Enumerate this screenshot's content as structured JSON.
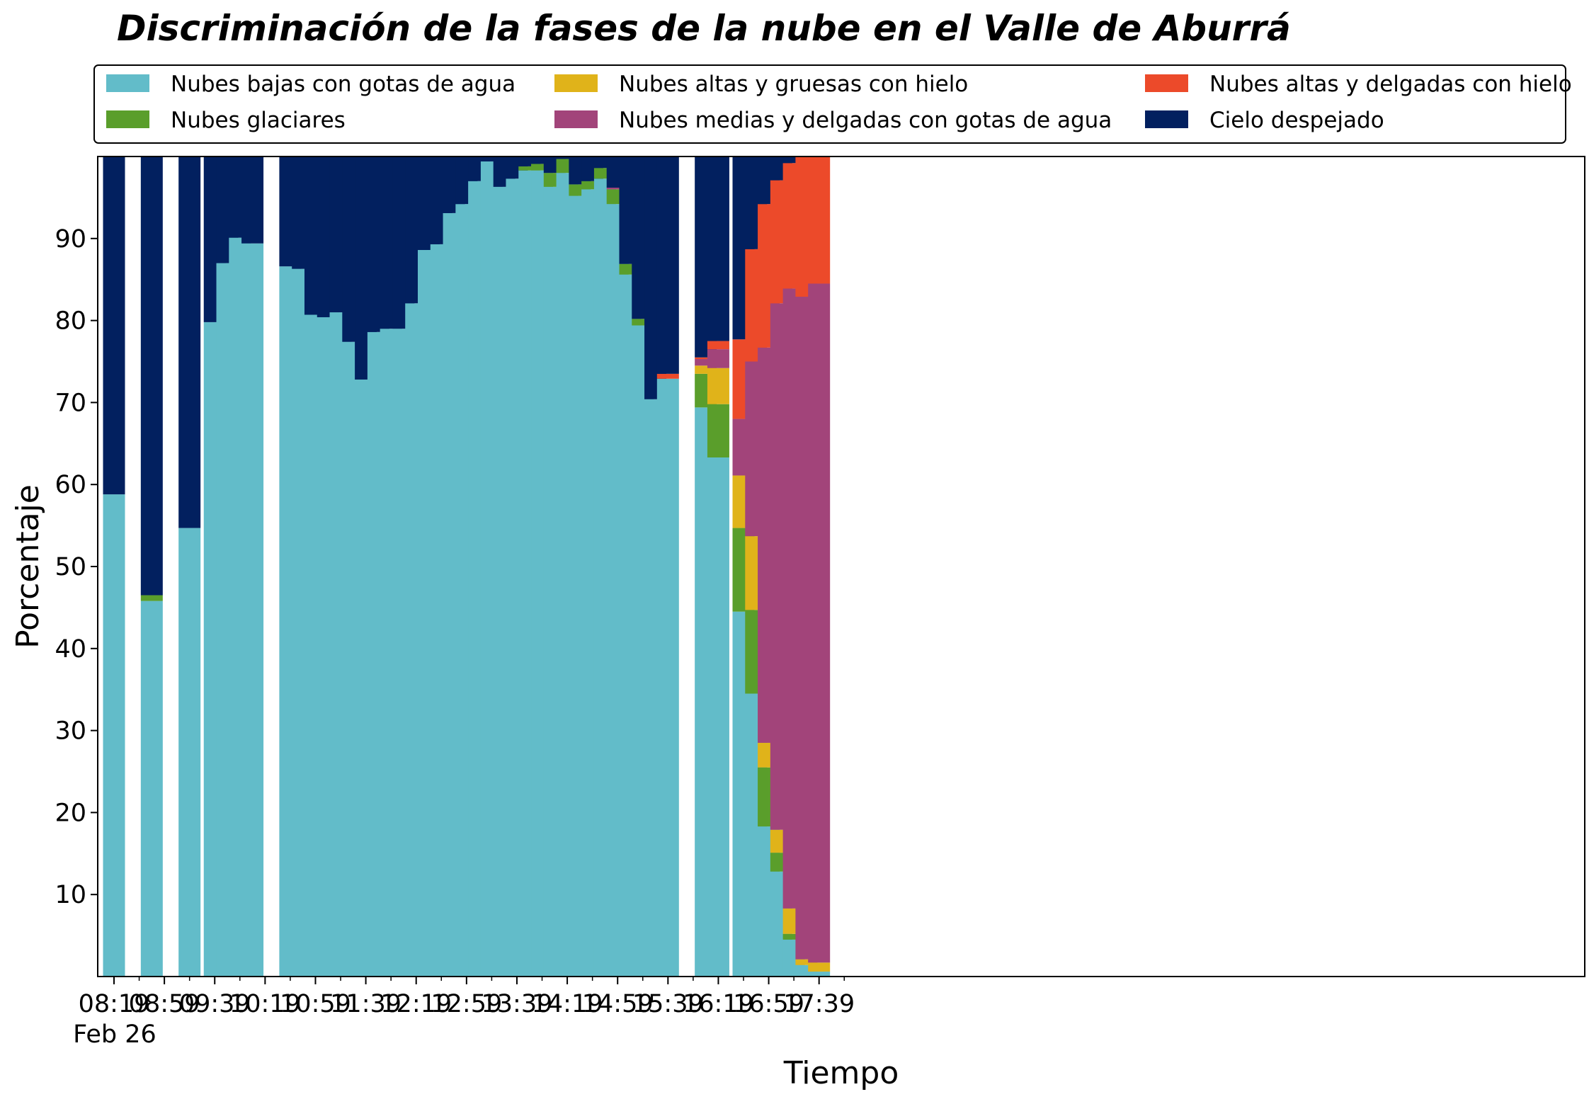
{
  "chart_data": {
    "type": "bar",
    "stacked": true,
    "title": "Discriminación de la fases de la nube en el Valle de Aburrá",
    "xlabel": "Tiempo",
    "ylabel": "Porcentaje",
    "ylim": [
      0,
      100
    ],
    "yticks": [
      10,
      20,
      30,
      40,
      50,
      60,
      70,
      80,
      90
    ],
    "xticks": [
      "08:19",
      "08:59",
      "09:39",
      "10:19",
      "10:59",
      "11:39",
      "12:19",
      "12:59",
      "13:39",
      "14:19",
      "14:59",
      "15:39",
      "16:19",
      "16:59",
      "17:39"
    ],
    "x_sublabel": "Feb 26",
    "legend_placement": "top",
    "grid": false,
    "series_colors": [
      "#62bcc9",
      "#5a9e2b",
      "#e0b31a",
      "#a2447a",
      "#ec4a2a",
      "#02205f"
    ],
    "legend": [
      {
        "label": "Nubes bajas con gotas de agua",
        "color": "#62bcc9"
      },
      {
        "label": "Nubes altas y gruesas con hielo",
        "color": "#e0b31a"
      },
      {
        "label": "Nubes altas y delgadas con hielo",
        "color": "#ec4a2a"
      },
      {
        "label": "Nubes glaciares",
        "color": "#5a9e2b"
      },
      {
        "label": "Nubes medias y delgadas con gotas de agua",
        "color": "#a2447a"
      },
      {
        "label": "Cielo despejado",
        "color": "#02205f"
      }
    ],
    "bars": [
      {
        "time": "08:19",
        "values": [
          58.8,
          0,
          0,
          0,
          0,
          41.2
        ]
      },
      {
        "time": "08:49",
        "values": [
          45.8,
          0.7,
          0,
          0,
          0,
          53.5
        ]
      },
      {
        "time": "09:19",
        "values": [
          54.7,
          0,
          0,
          0,
          0,
          45.3
        ]
      },
      {
        "time": "09:39",
        "values": [
          79.8,
          0,
          0,
          0,
          0,
          20.2
        ]
      },
      {
        "time": "09:49",
        "values": [
          87.0,
          0,
          0,
          0,
          0,
          13.0
        ]
      },
      {
        "time": "09:59",
        "values": [
          90.1,
          0,
          0,
          0,
          0,
          9.9
        ]
      },
      {
        "time": "10:09",
        "values": [
          89.4,
          0,
          0,
          0,
          0,
          10.6
        ]
      },
      {
        "time": "10:39",
        "values": [
          86.6,
          0,
          0,
          0,
          0,
          13.4
        ]
      },
      {
        "time": "10:49",
        "values": [
          86.3,
          0,
          0,
          0,
          0,
          13.7
        ]
      },
      {
        "time": "10:59",
        "values": [
          80.7,
          0,
          0,
          0,
          0,
          19.3
        ]
      },
      {
        "time": "11:09",
        "values": [
          80.4,
          0,
          0,
          0,
          0,
          19.6
        ]
      },
      {
        "time": "11:19",
        "values": [
          81.0,
          0,
          0,
          0,
          0,
          19.0
        ]
      },
      {
        "time": "11:29",
        "values": [
          77.4,
          0,
          0,
          0,
          0,
          22.6
        ]
      },
      {
        "time": "11:39",
        "values": [
          72.8,
          0,
          0,
          0,
          0,
          27.2
        ]
      },
      {
        "time": "11:49",
        "values": [
          78.6,
          0,
          0,
          0,
          0,
          21.4
        ]
      },
      {
        "time": "11:59",
        "values": [
          79.0,
          0,
          0,
          0,
          0,
          21.0
        ]
      },
      {
        "time": "12:09",
        "values": [
          79.0,
          0,
          0,
          0,
          0,
          21.0
        ]
      },
      {
        "time": "12:19",
        "values": [
          82.1,
          0,
          0,
          0,
          0,
          17.9
        ]
      },
      {
        "time": "12:29",
        "values": [
          88.6,
          0,
          0,
          0,
          0,
          11.4
        ]
      },
      {
        "time": "12:39",
        "values": [
          89.3,
          0,
          0,
          0,
          0,
          10.7
        ]
      },
      {
        "time": "12:49",
        "values": [
          93.1,
          0,
          0,
          0,
          0,
          6.9
        ]
      },
      {
        "time": "12:59",
        "values": [
          94.2,
          0,
          0,
          0,
          0,
          5.8
        ]
      },
      {
        "time": "13:09",
        "values": [
          97.0,
          0,
          0,
          0,
          0,
          3.0
        ]
      },
      {
        "time": "13:19",
        "values": [
          99.4,
          0,
          0,
          0,
          0,
          0.6
        ]
      },
      {
        "time": "13:29",
        "values": [
          96.3,
          0,
          0,
          0,
          0,
          3.7
        ]
      },
      {
        "time": "13:39",
        "values": [
          97.3,
          0,
          0,
          0,
          0,
          2.7
        ]
      },
      {
        "time": "13:49",
        "values": [
          98.3,
          0.5,
          0,
          0,
          0,
          1.2
        ]
      },
      {
        "time": "13:59",
        "values": [
          98.3,
          0.8,
          0,
          0,
          0,
          0.9
        ]
      },
      {
        "time": "14:09",
        "values": [
          96.3,
          1.7,
          0,
          0,
          0,
          2.0
        ]
      },
      {
        "time": "14:19",
        "values": [
          98.0,
          1.7,
          0,
          0,
          0,
          0.3
        ]
      },
      {
        "time": "14:29",
        "values": [
          95.2,
          1.4,
          0,
          0,
          0,
          3.4
        ]
      },
      {
        "time": "14:39",
        "values": [
          96.0,
          1.0,
          0,
          0,
          0,
          3.0
        ]
      },
      {
        "time": "14:49",
        "values": [
          97.3,
          1.3,
          0,
          0,
          0,
          1.4
        ]
      },
      {
        "time": "14:59",
        "values": [
          94.2,
          1.8,
          0,
          0.2,
          0,
          3.8
        ]
      },
      {
        "time": "15:09",
        "values": [
          85.6,
          1.3,
          0,
          0,
          0,
          13.1
        ]
      },
      {
        "time": "15:19",
        "values": [
          79.4,
          0.8,
          0,
          0,
          0,
          19.8
        ]
      },
      {
        "time": "15:29",
        "values": [
          70.4,
          0,
          0,
          0,
          0,
          29.6
        ]
      },
      {
        "time": "15:39",
        "values": [
          72.9,
          0,
          0,
          0,
          0.6,
          26.5
        ]
      },
      {
        "time": "16:09",
        "values": [
          69.4,
          4.1,
          1.0,
          0.8,
          0.2,
          24.5
        ]
      },
      {
        "time": "16:19",
        "values": [
          63.3,
          6.5,
          4.4,
          2.3,
          1.0,
          22.5
        ]
      },
      {
        "time": "16:39",
        "values": [
          44.5,
          10.2,
          6.4,
          6.9,
          9.7,
          22.3
        ]
      },
      {
        "time": "16:49",
        "values": [
          34.5,
          10.2,
          9.0,
          21.3,
          13.7,
          11.3
        ]
      },
      {
        "time": "16:59",
        "values": [
          18.3,
          7.2,
          3.0,
          48.2,
          17.5,
          5.8
        ]
      },
      {
        "time": "17:09",
        "values": [
          12.8,
          2.3,
          2.8,
          64.2,
          15.0,
          2.9
        ]
      },
      {
        "time": "17:19",
        "values": [
          4.5,
          0.7,
          3.1,
          75.6,
          15.3,
          0.8
        ]
      },
      {
        "time": "17:29",
        "values": [
          1.4,
          0,
          0.7,
          80.8,
          17.1,
          0
        ]
      },
      {
        "time": "17:39",
        "values": [
          0.6,
          0,
          1.1,
          82.8,
          15.5,
          0
        ]
      }
    ]
  }
}
